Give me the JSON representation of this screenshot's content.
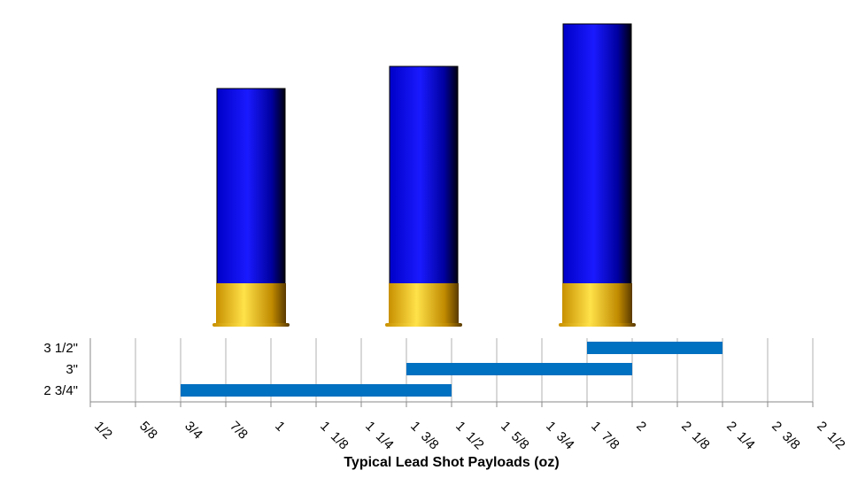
{
  "chart_data": {
    "type": "range-bar",
    "categories": [
      "2 3/4\"",
      "3\"",
      "3 1/2\""
    ],
    "low": [
      0.75,
      1.375,
      1.875
    ],
    "high": [
      1.5,
      2,
      2.25
    ],
    "color": "#0070c0",
    "xlabel": "Typical Lead Shot Payloads (oz)",
    "xlim": [
      0.5,
      2.5
    ],
    "xticks": [
      {
        "value": 0.5,
        "label": "1/2"
      },
      {
        "value": 0.625,
        "label": "5/8"
      },
      {
        "value": 0.75,
        "label": "3/4"
      },
      {
        "value": 0.875,
        "label": "7/8"
      },
      1,
      {
        "value": 1.125,
        "label": "1  1/8"
      },
      {
        "value": 1.25,
        "label": "1  1/4"
      },
      {
        "value": 1.375,
        "label": "1  3/8"
      },
      {
        "value": 1.5,
        "label": "1  1/2"
      },
      {
        "value": 1.625,
        "label": "1  5/8"
      },
      {
        "value": 1.75,
        "label": "1  3/4"
      },
      {
        "value": 1.875,
        "label": "1  7/8"
      },
      2,
      {
        "value": 2.125,
        "label": "2  1/8"
      },
      {
        "value": 2.25,
        "label": "2  1/4"
      },
      {
        "value": 2.375,
        "label": "2  3/8"
      },
      {
        "value": 2.5,
        "label": "2  1/2"
      }
    ],
    "grid": true
  }
}
